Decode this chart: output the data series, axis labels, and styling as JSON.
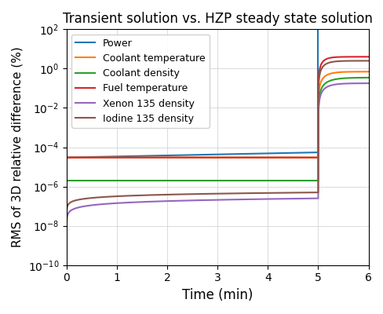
{
  "title": "Transient solution vs. HZP steady state solution",
  "xlabel": "Time (min)",
  "ylabel": "RMS of 3D relative difference (%)",
  "series": {
    "Power": {
      "color": "#1f77b4"
    },
    "Coolant temperature": {
      "color": "#ff7f0e"
    },
    "Coolant density": {
      "color": "#2ca02c"
    },
    "Fuel temperature": {
      "color": "#d62728"
    },
    "Xenon 135 density": {
      "color": "#9467bd"
    },
    "Iodine 135 density": {
      "color": "#8c564b"
    }
  },
  "legend_order": [
    "Power",
    "Coolant temperature",
    "Coolant density",
    "Fuel temperature",
    "Xenon 135 density",
    "Iodine 135 density"
  ]
}
